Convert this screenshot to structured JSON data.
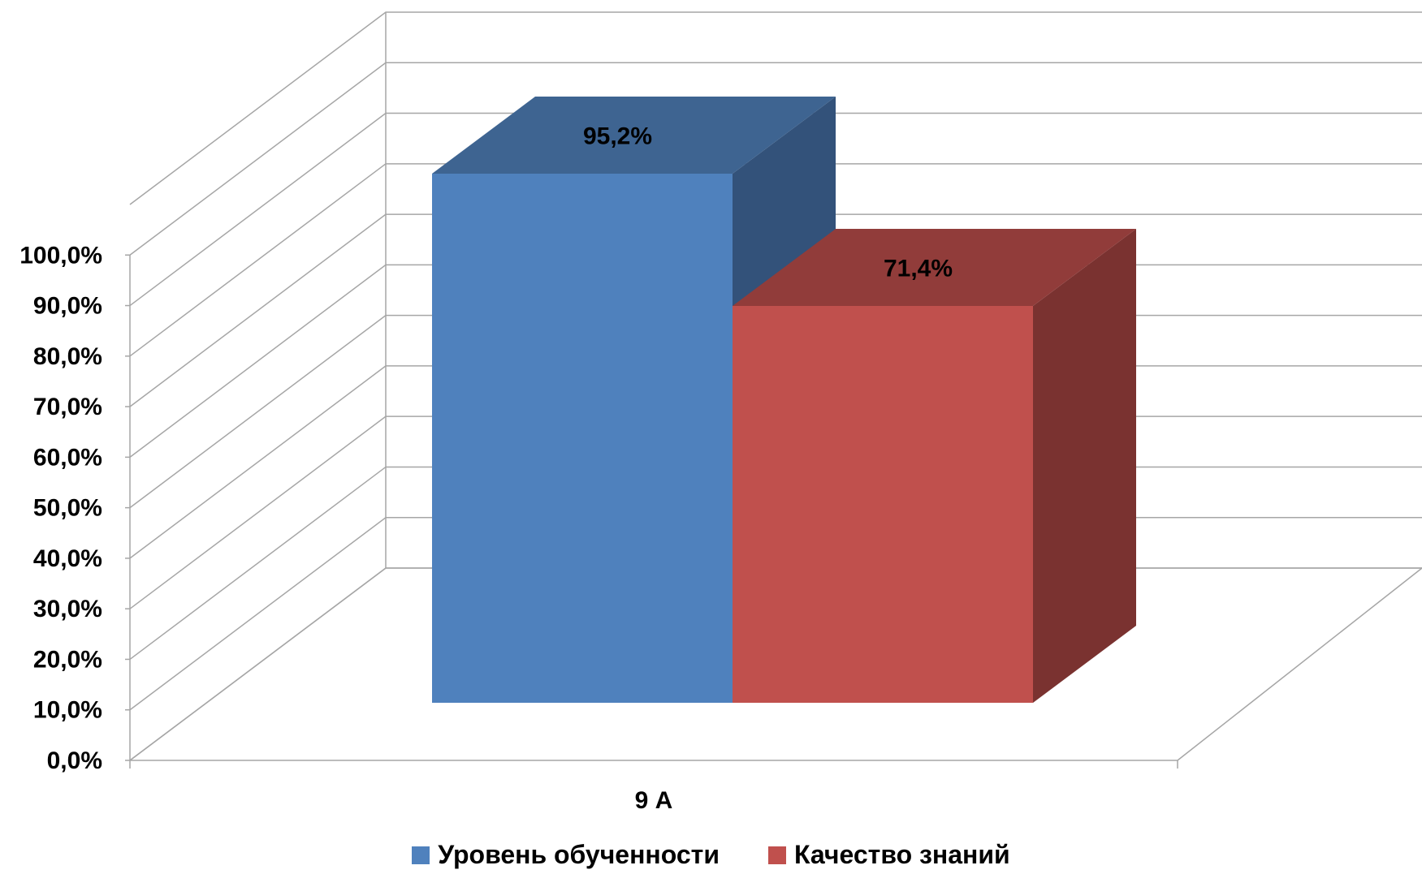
{
  "chart_data": {
    "type": "bar",
    "categories": [
      "9 А"
    ],
    "series": [
      {
        "name": "Уровень обученности",
        "values": [
          95.2
        ],
        "label": "95,2%",
        "color": "#4F81BD",
        "top_color": "#3E6491",
        "side_color": "#33527A"
      },
      {
        "name": "Качество знаний",
        "values": [
          71.4
        ],
        "label": "71,4%",
        "color": "#C0504D",
        "top_color": "#913C3A",
        "side_color": "#7A3230"
      }
    ],
    "y_ticks": [
      "0,0%",
      "10,0%",
      "20,0%",
      "30,0%",
      "40,0%",
      "50,0%",
      "60,0%",
      "70,0%",
      "80,0%",
      "90,0%",
      "100,0%"
    ],
    "ylim": [
      0,
      100
    ],
    "y_step": 10,
    "grid": true,
    "legend_position": "bottom",
    "title": "",
    "xlabel": "",
    "ylabel": ""
  }
}
